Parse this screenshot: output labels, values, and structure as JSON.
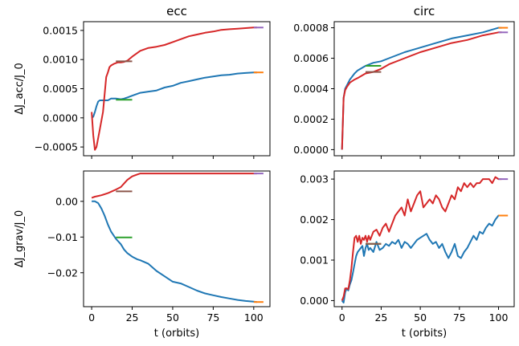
{
  "colors": {
    "blue": "#1f77b4",
    "red": "#d62728",
    "green": "#2ca02c",
    "brown": "#8c564b",
    "orange": "#ff7f0e",
    "purple": "#9467bd"
  },
  "chart_data": [
    {
      "id": "top-left",
      "type": "line",
      "title": "ecc",
      "xlabel": "",
      "ylabel": "ΔJ_acc/J_0",
      "xlim": [
        -5,
        110
      ],
      "ylim": [
        -0.00065,
        0.00165
      ],
      "xticks": [
        0,
        25,
        50,
        75,
        100
      ],
      "xtick_labels": [
        "",
        "",
        "",
        "",
        ""
      ],
      "yticks": [
        -0.0005,
        0.0,
        0.0005,
        0.001,
        0.0015
      ],
      "ytick_labels": [
        "−0.0005",
        "0.0000",
        "0.0005",
        "0.0010",
        "0.0015"
      ],
      "series": [
        {
          "color": "blue",
          "x": [
            0,
            1,
            2,
            3,
            4,
            5,
            6,
            8,
            10,
            12,
            15,
            18,
            20,
            22,
            25,
            30,
            35,
            40,
            45,
            50,
            55,
            60,
            65,
            70,
            75,
            80,
            85,
            90,
            95,
            100,
            102
          ],
          "y": [
            0.0,
            2e-05,
            0.0001,
            0.0002,
            0.00028,
            0.0003,
            0.0003,
            0.0003,
            0.0003,
            0.00033,
            0.00033,
            0.00032,
            0.00033,
            0.00035,
            0.00038,
            0.00043,
            0.00045,
            0.00047,
            0.00052,
            0.00055,
            0.0006,
            0.00063,
            0.00066,
            0.00069,
            0.00071,
            0.00073,
            0.00074,
            0.00076,
            0.00077,
            0.00078,
            0.00078
          ]
        },
        {
          "color": "red",
          "x": [
            0,
            1,
            2,
            3,
            5,
            7,
            8,
            9,
            10,
            11,
            12,
            14,
            16,
            18,
            20,
            22,
            25,
            30,
            35,
            40,
            45,
            50,
            55,
            60,
            65,
            70,
            75,
            80,
            85,
            90,
            95,
            100,
            102
          ],
          "y": [
            0.0001,
            -0.0003,
            -0.00055,
            -0.0005,
            -0.0002,
            0.0001,
            0.0004,
            0.0007,
            0.00078,
            0.00087,
            0.0009,
            0.00093,
            0.00095,
            0.00095,
            0.00096,
            0.00098,
            0.00105,
            0.00115,
            0.0012,
            0.00122,
            0.00125,
            0.0013,
            0.00135,
            0.0014,
            0.00143,
            0.00146,
            0.00148,
            0.00151,
            0.00152,
            0.00153,
            0.00154,
            0.00155,
            0.00155
          ]
        },
        {
          "color": "green",
          "x": [
            15,
            25
          ],
          "y": [
            0.00031,
            0.00031
          ]
        },
        {
          "color": "brown",
          "x": [
            15,
            25
          ],
          "y": [
            0.00097,
            0.00097
          ]
        },
        {
          "color": "orange",
          "x": [
            100,
            106
          ],
          "y": [
            0.00078,
            0.00078
          ]
        },
        {
          "color": "purple",
          "x": [
            100,
            106
          ],
          "y": [
            0.00155,
            0.00155
          ]
        }
      ]
    },
    {
      "id": "top-right",
      "type": "line",
      "title": "circ",
      "xlabel": "",
      "ylabel": "",
      "xlim": [
        -5,
        110
      ],
      "ylim": [
        -4e-05,
        0.00084
      ],
      "xticks": [
        0,
        25,
        50,
        75,
        100
      ],
      "xtick_labels": [
        "",
        "",
        "",
        "",
        ""
      ],
      "yticks": [
        0.0,
        0.0002,
        0.0004,
        0.0006,
        0.0008
      ],
      "ytick_labels": [
        "0.0000",
        "0.0002",
        "0.0004",
        "0.0006",
        "0.0008"
      ],
      "series": [
        {
          "color": "blue",
          "x": [
            0,
            1,
            2,
            3,
            5,
            8,
            10,
            15,
            20,
            25,
            30,
            40,
            50,
            60,
            70,
            80,
            90,
            100,
            102
          ],
          "y": [
            0.0,
            0.00034,
            0.0004,
            0.00042,
            0.00046,
            0.0005,
            0.00052,
            0.00055,
            0.00057,
            0.00058,
            0.0006,
            0.00064,
            0.00067,
            0.0007,
            0.00073,
            0.00075,
            0.00077,
            0.0008,
            0.0008
          ]
        },
        {
          "color": "red",
          "x": [
            0,
            1,
            2,
            3,
            5,
            8,
            10,
            15,
            20,
            25,
            30,
            40,
            50,
            60,
            70,
            80,
            90,
            100,
            102
          ],
          "y": [
            0.0,
            0.00034,
            0.00039,
            0.00041,
            0.00044,
            0.00046,
            0.00047,
            0.0005,
            0.00051,
            0.00053,
            0.00056,
            0.0006,
            0.00064,
            0.00067,
            0.0007,
            0.00072,
            0.00075,
            0.00077,
            0.00077
          ]
        },
        {
          "color": "green",
          "x": [
            15,
            25
          ],
          "y": [
            0.00055,
            0.00055
          ]
        },
        {
          "color": "brown",
          "x": [
            15,
            25
          ],
          "y": [
            0.00051,
            0.00051
          ]
        },
        {
          "color": "orange",
          "x": [
            100,
            106
          ],
          "y": [
            0.0008,
            0.0008
          ]
        },
        {
          "color": "purple",
          "x": [
            100,
            106
          ],
          "y": [
            0.00077,
            0.00077
          ]
        }
      ]
    },
    {
      "id": "bottom-left",
      "type": "line",
      "title": "",
      "xlabel": "t (orbits)",
      "ylabel": "ΔJ_grav/J_0",
      "xlim": [
        -5,
        110
      ],
      "ylim": [
        -0.0295,
        0.0085
      ],
      "xticks": [
        0,
        25,
        50,
        75,
        100
      ],
      "xtick_labels": [
        "0",
        "25",
        "50",
        "75",
        "100"
      ],
      "yticks": [
        0.0,
        -0.01,
        -0.02
      ],
      "ytick_labels": [
        "0.00",
        "−0.01",
        "−0.02"
      ],
      "series": [
        {
          "color": "blue",
          "x": [
            0,
            2,
            4,
            6,
            8,
            10,
            12,
            15,
            18,
            20,
            22,
            25,
            28,
            30,
            35,
            40,
            45,
            50,
            55,
            60,
            65,
            70,
            75,
            80,
            85,
            90,
            95,
            100,
            102
          ],
          "y": [
            0.0,
            0.0,
            -0.0005,
            -0.002,
            -0.004,
            -0.0065,
            -0.0085,
            -0.0105,
            -0.012,
            -0.0135,
            -0.0145,
            -0.0155,
            -0.0162,
            -0.0165,
            -0.0175,
            -0.0195,
            -0.021,
            -0.0225,
            -0.023,
            -0.024,
            -0.025,
            -0.0258,
            -0.0263,
            -0.0268,
            -0.0272,
            -0.0276,
            -0.0279,
            -0.0281,
            -0.0282
          ]
        },
        {
          "color": "red",
          "x": [
            0,
            2,
            4,
            6,
            8,
            10,
            12,
            15,
            18,
            20,
            22,
            25,
            28,
            30,
            35,
            40,
            50,
            60,
            70,
            80,
            90,
            100,
            102
          ],
          "y": [
            0.001,
            0.0013,
            0.0015,
            0.0017,
            0.002,
            0.0023,
            0.0027,
            0.0033,
            0.004,
            0.005,
            0.006,
            0.007,
            0.0075,
            0.0078,
            0.0078,
            0.0078,
            0.0078,
            0.0078,
            0.0078,
            0.0078,
            0.0078,
            0.0078,
            0.0078
          ]
        },
        {
          "color": "green",
          "x": [
            15,
            25
          ],
          "y": [
            -0.0101,
            -0.0101
          ]
        },
        {
          "color": "brown",
          "x": [
            15,
            25
          ],
          "y": [
            0.0028,
            0.0028
          ]
        },
        {
          "color": "orange",
          "x": [
            100,
            106
          ],
          "y": [
            -0.0282,
            -0.0282
          ]
        },
        {
          "color": "purple",
          "x": [
            100,
            106
          ],
          "y": [
            0.0078,
            0.0078
          ]
        }
      ]
    },
    {
      "id": "bottom-right",
      "type": "line",
      "title": "",
      "xlabel": "t (orbits)",
      "ylabel": "",
      "xlim": [
        -5,
        110
      ],
      "ylim": [
        -0.00015,
        0.0032
      ],
      "xticks": [
        0,
        25,
        50,
        75,
        100
      ],
      "xtick_labels": [
        "0",
        "25",
        "50",
        "75",
        "100"
      ],
      "yticks": [
        0.0,
        0.001,
        0.002,
        0.003
      ],
      "ytick_labels": [
        "0.000",
        "0.001",
        "0.002",
        "0.003"
      ],
      "series": [
        {
          "color": "blue",
          "x": [
            0,
            1,
            2,
            3,
            4,
            5,
            6,
            7,
            8,
            9,
            10,
            11,
            12,
            13,
            14,
            15,
            16,
            17,
            18,
            20,
            22,
            24,
            26,
            28,
            30,
            32,
            34,
            36,
            38,
            40,
            42,
            44,
            46,
            48,
            50,
            52,
            54,
            56,
            58,
            60,
            62,
            64,
            66,
            68,
            70,
            72,
            74,
            76,
            78,
            80,
            82,
            84,
            86,
            88,
            90,
            92,
            94,
            96,
            98,
            100,
            102
          ],
          "y": [
            0.0,
            -5e-05,
            0.0002,
            0.0003,
            0.00025,
            0.0004,
            0.0005,
            0.0007,
            0.0009,
            0.0011,
            0.0012,
            0.00125,
            0.0013,
            0.00135,
            0.0011,
            0.0013,
            0.0014,
            0.00125,
            0.0013,
            0.0012,
            0.00145,
            0.00125,
            0.0013,
            0.0014,
            0.00135,
            0.00145,
            0.0014,
            0.0015,
            0.0013,
            0.00145,
            0.0014,
            0.0013,
            0.0014,
            0.0015,
            0.00155,
            0.0016,
            0.00165,
            0.0015,
            0.0014,
            0.00145,
            0.0013,
            0.0014,
            0.0012,
            0.00105,
            0.0012,
            0.0014,
            0.0011,
            0.00105,
            0.0012,
            0.0013,
            0.00145,
            0.0016,
            0.0015,
            0.0017,
            0.00165,
            0.0018,
            0.0019,
            0.00185,
            0.002,
            0.0021,
            0.0021
          ]
        },
        {
          "color": "red",
          "x": [
            0,
            1,
            2,
            3,
            4,
            5,
            6,
            7,
            8,
            9,
            10,
            11,
            12,
            13,
            14,
            15,
            16,
            17,
            18,
            20,
            22,
            24,
            26,
            28,
            30,
            32,
            34,
            36,
            38,
            40,
            42,
            44,
            46,
            48,
            50,
            52,
            54,
            56,
            58,
            60,
            62,
            64,
            66,
            68,
            70,
            72,
            74,
            76,
            78,
            80,
            82,
            84,
            86,
            88,
            90,
            92,
            94,
            96,
            98,
            100,
            102
          ],
          "y": [
            0.0,
            0.0001,
            0.0003,
            0.0003,
            0.00028,
            0.0005,
            0.0008,
            0.0012,
            0.00155,
            0.0016,
            0.00145,
            0.0016,
            0.0014,
            0.00155,
            0.0015,
            0.0016,
            0.00145,
            0.0016,
            0.0015,
            0.0017,
            0.00175,
            0.0016,
            0.0018,
            0.0019,
            0.0017,
            0.0019,
            0.0021,
            0.0022,
            0.0023,
            0.0021,
            0.0025,
            0.0022,
            0.0024,
            0.0026,
            0.0027,
            0.0023,
            0.0024,
            0.0025,
            0.0024,
            0.0026,
            0.0025,
            0.0023,
            0.0022,
            0.0024,
            0.0026,
            0.0025,
            0.0028,
            0.0027,
            0.0029,
            0.0028,
            0.0029,
            0.0028,
            0.0029,
            0.0029,
            0.003,
            0.003,
            0.003,
            0.0029,
            0.00305,
            0.003,
            0.003
          ]
        },
        {
          "color": "green",
          "x": [
            15,
            25
          ],
          "y": [
            0.0014,
            0.0014
          ]
        },
        {
          "color": "brown",
          "x": [
            15,
            25
          ],
          "y": [
            0.0014,
            0.0014
          ]
        },
        {
          "color": "orange",
          "x": [
            100,
            106
          ],
          "y": [
            0.0021,
            0.0021
          ]
        },
        {
          "color": "purple",
          "x": [
            100,
            106
          ],
          "y": [
            0.003,
            0.003
          ]
        }
      ]
    }
  ]
}
